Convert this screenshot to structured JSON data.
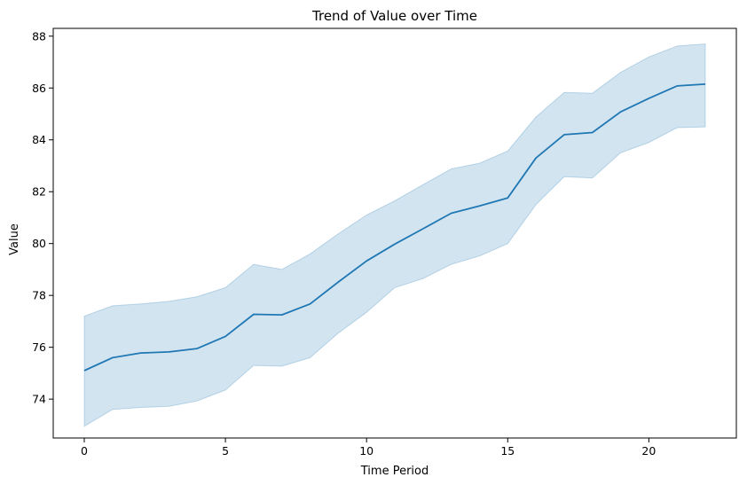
{
  "chart_data": {
    "type": "line",
    "title": "Trend of Value over Time",
    "xlabel": "Time Period",
    "ylabel": "Value",
    "xlim": [
      -1.1,
      23.1
    ],
    "ylim": [
      72.5,
      88.3
    ],
    "xticks": [
      0,
      5,
      10,
      15,
      20
    ],
    "yticks": [
      74,
      76,
      78,
      80,
      82,
      84,
      86,
      88
    ],
    "grid": false,
    "legend": "none",
    "line_color": "#1f77b4",
    "band_color": "#1f77b4",
    "series": [
      {
        "x": [
          0,
          1,
          2,
          3,
          4,
          5,
          6,
          7,
          8,
          9,
          10,
          11,
          12,
          13,
          14,
          15,
          16,
          17,
          18,
          19,
          20,
          21,
          22
        ],
        "values": [
          75.1,
          75.6,
          75.78,
          75.82,
          75.95,
          76.42,
          77.27,
          77.25,
          77.67,
          78.52,
          79.33,
          79.98,
          80.57,
          81.17,
          81.45,
          81.76,
          83.3,
          84.2,
          84.28,
          85.08,
          85.6,
          86.08,
          86.15
        ],
        "lower": [
          72.95,
          73.6,
          73.68,
          73.72,
          73.93,
          74.35,
          75.3,
          75.27,
          75.6,
          76.55,
          77.35,
          78.3,
          78.65,
          79.2,
          79.52,
          80.0,
          81.5,
          82.58,
          82.53,
          83.5,
          83.9,
          84.47,
          84.5
        ],
        "upper": [
          77.2,
          77.6,
          77.67,
          77.77,
          77.95,
          78.3,
          79.2,
          79.0,
          79.6,
          80.38,
          81.1,
          81.65,
          82.27,
          82.88,
          83.1,
          83.57,
          84.88,
          85.83,
          85.8,
          86.6,
          87.2,
          87.62,
          87.7
        ]
      }
    ]
  }
}
